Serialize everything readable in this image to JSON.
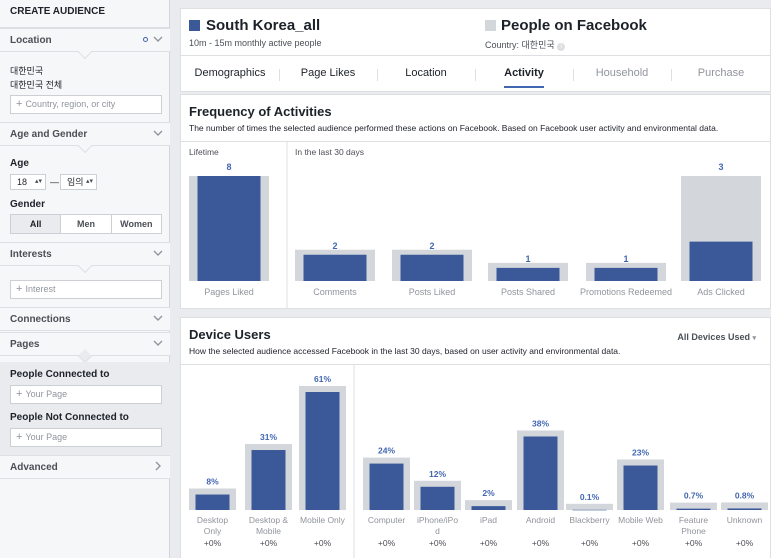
{
  "sidebar": {
    "title": "CREATE AUDIENCE",
    "location": {
      "label": "Location",
      "line1": "대한민국",
      "line2": "대한민국 전체",
      "placeholder": "Country, region, or city"
    },
    "age_gender": {
      "label": "Age and Gender",
      "age_label": "Age",
      "age_from": "18",
      "age_dash": "—",
      "age_to": "임의",
      "gender_label": "Gender",
      "genders": [
        "All",
        "Men",
        "Women"
      ]
    },
    "interests": {
      "label": "Interests",
      "placeholder": "Interest"
    },
    "connections": {
      "label": "Connections"
    },
    "pages": {
      "label": "Pages",
      "connected_label": "People Connected to",
      "connected_placeholder": "Your Page",
      "not_connected_label": "People Not Connected to",
      "not_connected_placeholder": "Your Page"
    },
    "advanced": {
      "label": "Advanced"
    }
  },
  "header": {
    "audience_title": "South Korea_all",
    "audience_sub": "10m - 15m monthly active people",
    "compare_title": "People on Facebook",
    "compare_sub": "Country: 대한민국",
    "audience_color": "#3b5998",
    "compare_color": "#d3d6db"
  },
  "tabs": [
    "Demographics",
    "Page Likes",
    "Location",
    "Activity",
    "Household",
    "Purchase"
  ],
  "activity": {
    "title": "Frequency of Activities",
    "desc": "The number of times the selected audience performed these actions on Facebook. Based on Facebook user activity and environmental data.",
    "group1": "Lifetime",
    "group2": "In the last 30 days"
  },
  "devices": {
    "title": "Device Users",
    "desc": "How the selected audience accessed Facebook in the last 30 days, based on user activity and environmental data.",
    "dropdown": "All Devices Used"
  },
  "chart_data": [
    {
      "type": "bar",
      "categories": [
        "Pages Liked",
        "Comments",
        "Posts Liked",
        "Posts Shared",
        "Promotions Redeemed",
        "Ads Clicked"
      ],
      "series": [
        {
          "values": [
            8,
            2,
            2,
            1,
            1,
            3
          ]
        }
      ],
      "value_labels": [
        "8",
        "2",
        "2",
        "1",
        "1",
        "3"
      ],
      "groups": [
        "Lifetime",
        "In the last 30 days"
      ]
    },
    {
      "type": "bar",
      "categories": [
        "Desktop Only",
        "Desktop & Mobile",
        "Mobile Only",
        "Computer",
        "iPhone/iPod",
        "iPad",
        "Android",
        "Blackberry",
        "Mobile Web",
        "Feature Phone",
        "Unknown"
      ],
      "category_lines": [
        [
          "Desktop",
          "Only"
        ],
        [
          "Desktop &",
          "Mobile"
        ],
        [
          "Mobile Only"
        ],
        [
          "Computer"
        ],
        [
          "iPhone/iPo",
          "d"
        ],
        [
          "iPad"
        ],
        [
          "Android"
        ],
        [
          "Blackberry"
        ],
        [
          "Mobile Web"
        ],
        [
          "Feature",
          "Phone"
        ],
        [
          "Unknown"
        ]
      ],
      "series": [
        {
          "values": [
            8,
            31,
            61,
            24,
            12,
            2,
            38,
            0.1,
            23,
            0.7,
            0.8
          ]
        }
      ],
      "value_labels": [
        "8%",
        "31%",
        "61%",
        "24%",
        "12%",
        "2%",
        "38%",
        "0.1%",
        "23%",
        "0.7%",
        "0.8%"
      ],
      "deltas": [
        "+0%",
        "+0%",
        "+0%",
        "+0%",
        "+0%",
        "+0%",
        "+0%",
        "+0%",
        "+0%",
        "+0%",
        "+0%"
      ]
    }
  ]
}
